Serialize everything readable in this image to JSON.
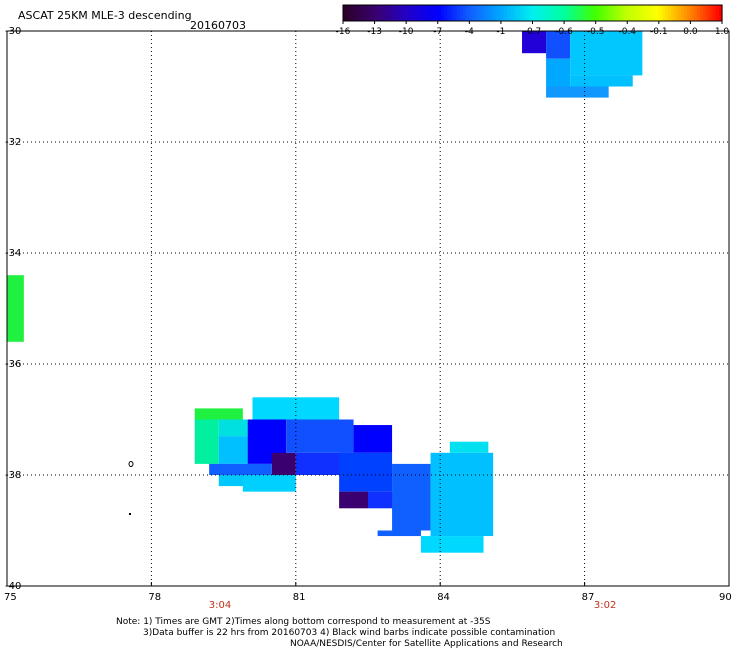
{
  "header": {
    "title": "ASCAT 25KM MLE-3 descending",
    "date": "20160703"
  },
  "colorbar": {
    "labels": [
      "-16",
      "-13",
      "-10",
      "-7",
      "-4",
      "-1",
      "-0.7",
      "-0.6",
      "-0.5",
      "-0.4",
      "-0.1",
      "0.0",
      "1.0"
    ],
    "colors": [
      "#2a0028",
      "#3a0070",
      "#2200c8",
      "#0000ff",
      "#1060ff",
      "#00a8ff",
      "#00f0f0",
      "#00ffa0",
      "#40ff00",
      "#c0ff00",
      "#ffff00",
      "#ff8800",
      "#ff0000"
    ]
  },
  "axes": {
    "x_ticks": [
      "75",
      "78",
      "81",
      "84",
      "87",
      "90"
    ],
    "y_ticks": [
      "-30",
      "-32",
      "-34",
      "-36",
      "-38",
      "-40"
    ],
    "xlim": [
      75,
      90
    ],
    "ylim": [
      -40,
      -30
    ]
  },
  "time_labels": [
    {
      "text": "3:04",
      "lon": 79.4
    },
    {
      "text": "3:02",
      "lon": 87.4
    }
  ],
  "notes": [
    "Note: 1) Times are GMT 2)Times along bottom correspond to measurement at -35S",
    "3)Data buffer is 22 hrs from 20160703 4) Black wind barbs indicate possible contamination",
    "NOAA/NESDIS/Center for Satellite Applications and Research"
  ],
  "chart_data": {
    "type": "heatmap",
    "x_axis": "longitude",
    "y_axis": "latitude",
    "xlim": [
      75,
      90
    ],
    "ylim": [
      -40,
      -30
    ],
    "cells": [
      {
        "lon": [
          85.7,
          86.2
        ],
        "lat": [
          -30.4,
          -30.0
        ],
        "color": "#2200d8"
      },
      {
        "lon": [
          86.2,
          86.7
        ],
        "lat": [
          -30.5,
          -30.0
        ],
        "color": "#1050ff"
      },
      {
        "lon": [
          86.7,
          88.2
        ],
        "lat": [
          -30.8,
          -30.0
        ],
        "color": "#00c8ff"
      },
      {
        "lon": [
          86.2,
          86.7
        ],
        "lat": [
          -31.0,
          -30.5
        ],
        "color": "#00a8ff"
      },
      {
        "lon": [
          86.7,
          88.0
        ],
        "lat": [
          -31.0,
          -30.8
        ],
        "color": "#00c0ff"
      },
      {
        "lon": [
          86.2,
          87.5
        ],
        "lat": [
          -31.2,
          -31.0
        ],
        "color": "#1098ff"
      },
      {
        "lon": [
          75.0,
          75.35
        ],
        "lat": [
          -35.6,
          -34.4
        ],
        "color": "#20f040"
      },
      {
        "lon": [
          78.9,
          79.9
        ],
        "lat": [
          -37.0,
          -36.8
        ],
        "color": "#20f040"
      },
      {
        "lon": [
          78.9,
          79.4
        ],
        "lat": [
          -37.8,
          -37.0
        ],
        "color": "#00f0a0"
      },
      {
        "lon": [
          79.4,
          80.0
        ],
        "lat": [
          -37.3,
          -37.0
        ],
        "color": "#00e0e0"
      },
      {
        "lon": [
          79.4,
          80.0
        ],
        "lat": [
          -37.8,
          -37.3
        ],
        "color": "#00c0ff"
      },
      {
        "lon": [
          80.1,
          81.9
        ],
        "lat": [
          -37.0,
          -36.6
        ],
        "color": "#00d8ff"
      },
      {
        "lon": [
          80.0,
          80.8
        ],
        "lat": [
          -37.8,
          -37.0
        ],
        "color": "#0000ff"
      },
      {
        "lon": [
          80.5,
          81.0
        ],
        "lat": [
          -38.0,
          -37.6
        ],
        "color": "#3a0070"
      },
      {
        "lon": [
          80.8,
          82.2
        ],
        "lat": [
          -37.6,
          -37.0
        ],
        "color": "#1050ff"
      },
      {
        "lon": [
          81.0,
          82.2
        ],
        "lat": [
          -38.0,
          -37.6
        ],
        "color": "#1030ff"
      },
      {
        "lon": [
          79.2,
          80.5
        ],
        "lat": [
          -38.0,
          -37.8
        ],
        "color": "#1060ff"
      },
      {
        "lon": [
          79.4,
          80.0
        ],
        "lat": [
          -38.2,
          -38.0
        ],
        "color": "#00c8ff"
      },
      {
        "lon": [
          79.9,
          81.0
        ],
        "lat": [
          -38.3,
          -38.0
        ],
        "color": "#00d0ff"
      },
      {
        "lon": [
          82.2,
          83.0
        ],
        "lat": [
          -37.6,
          -37.1
        ],
        "color": "#0000ff"
      },
      {
        "lon": [
          81.9,
          83.0
        ],
        "lat": [
          -38.3,
          -37.6
        ],
        "color": "#0040ff"
      },
      {
        "lon": [
          81.9,
          82.5
        ],
        "lat": [
          -38.6,
          -38.3
        ],
        "color": "#3a0070"
      },
      {
        "lon": [
          82.5,
          83.2
        ],
        "lat": [
          -38.6,
          -38.3
        ],
        "color": "#1030ff"
      },
      {
        "lon": [
          83.0,
          83.8
        ],
        "lat": [
          -39.0,
          -37.8
        ],
        "color": "#1060ff"
      },
      {
        "lon": [
          83.8,
          85.1
        ],
        "lat": [
          -39.1,
          -37.6
        ],
        "color": "#00c0ff"
      },
      {
        "lon": [
          84.2,
          85.0
        ],
        "lat": [
          -37.6,
          -37.4
        ],
        "color": "#00e0f0"
      },
      {
        "lon": [
          83.6,
          84.9
        ],
        "lat": [
          -39.4,
          -39.1
        ],
        "color": "#00d8ff"
      },
      {
        "lon": [
          82.7,
          83.6
        ],
        "lat": [
          -39.1,
          -39.0
        ],
        "color": "#1060ff"
      }
    ]
  }
}
